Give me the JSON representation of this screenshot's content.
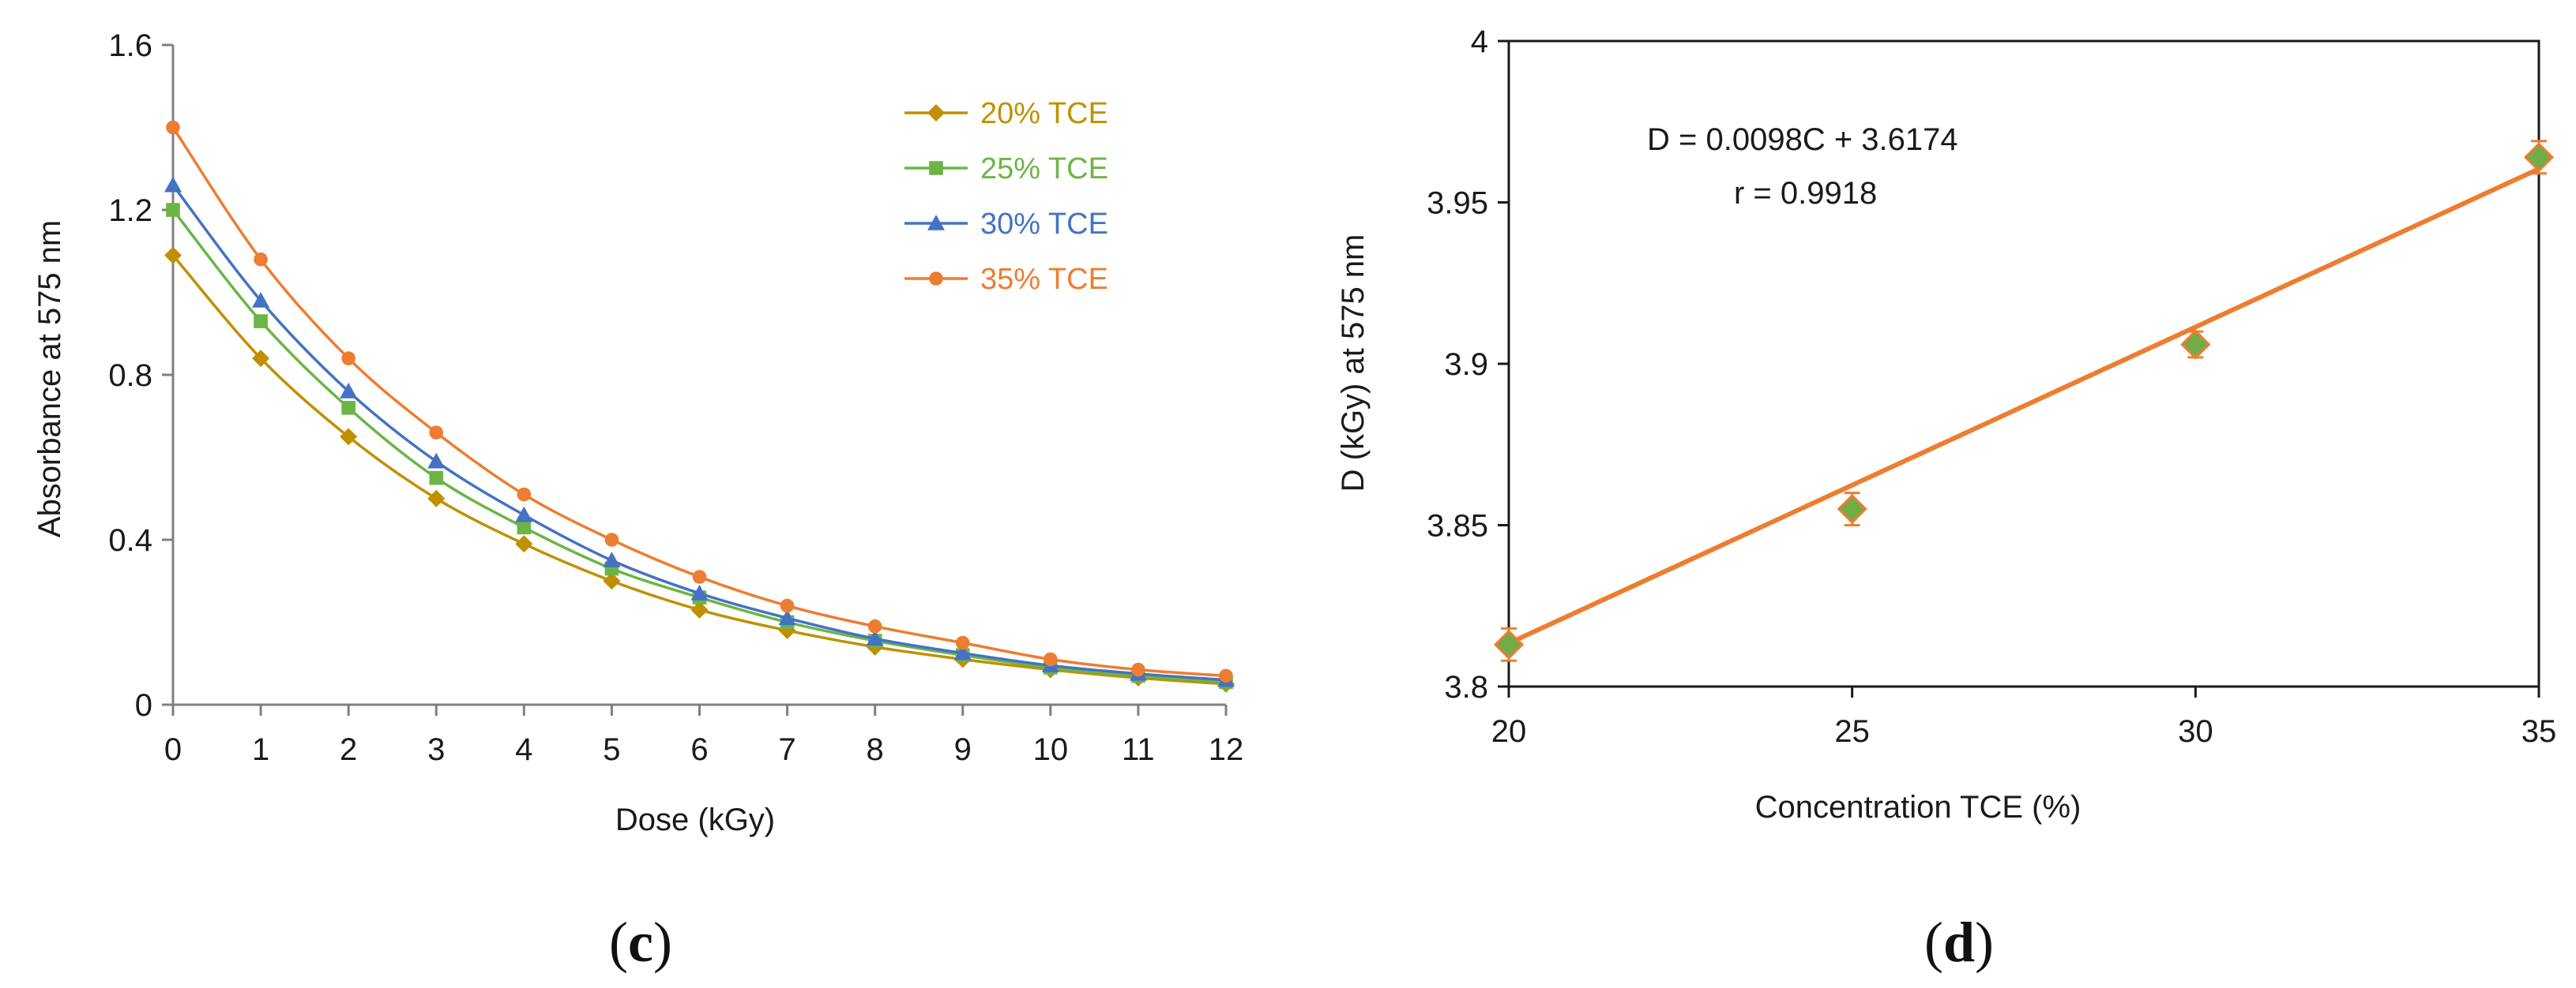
{
  "panels": {
    "c": {
      "label_open": "(",
      "label_letter": "c",
      "label_close": ")"
    },
    "d": {
      "label_open": "(",
      "label_letter": "d",
      "label_close": ")"
    }
  },
  "chart_data": [
    {
      "id": "c",
      "type": "line",
      "xlabel": "Dose (kGy)",
      "ylabel": "Absorbance at 575 nm",
      "xlim": [
        0,
        12
      ],
      "ylim": [
        0,
        1.6
      ],
      "x_ticks": [
        "0",
        "1",
        "2",
        "3",
        "4",
        "5",
        "6",
        "7",
        "8",
        "9",
        "10",
        "11",
        "12"
      ],
      "y_ticks": [
        "0",
        "0.4",
        "0.8",
        "1.2",
        "1.6"
      ],
      "y_tick_values": [
        0,
        0.4,
        0.8,
        1.2,
        1.6
      ],
      "grid": false,
      "legend_position": "top-right",
      "x": [
        0,
        1,
        2,
        3,
        4,
        5,
        6,
        7,
        8,
        9,
        10,
        11,
        12
      ],
      "series": [
        {
          "name": "20% TCE",
          "color": "#C09000",
          "marker": "diamond",
          "values": [
            1.09,
            0.84,
            0.65,
            0.5,
            0.39,
            0.3,
            0.23,
            0.18,
            0.14,
            0.11,
            0.085,
            0.065,
            0.05
          ]
        },
        {
          "name": "25% TCE",
          "color": "#6BB544",
          "marker": "square",
          "values": [
            1.2,
            0.93,
            0.72,
            0.55,
            0.43,
            0.33,
            0.26,
            0.2,
            0.155,
            0.12,
            0.09,
            0.07,
            0.055
          ]
        },
        {
          "name": "30% TCE",
          "color": "#4472C4",
          "marker": "triangle",
          "values": [
            1.26,
            0.98,
            0.76,
            0.59,
            0.46,
            0.35,
            0.27,
            0.21,
            0.16,
            0.125,
            0.095,
            0.075,
            0.06
          ]
        },
        {
          "name": "35% TCE",
          "color": "#ED7D31",
          "marker": "circle",
          "values": [
            1.4,
            1.08,
            0.84,
            0.66,
            0.51,
            0.4,
            0.31,
            0.24,
            0.19,
            0.15,
            0.11,
            0.085,
            0.07
          ]
        }
      ]
    },
    {
      "id": "d",
      "type": "scatter",
      "xlabel": "Concentration TCE (%)",
      "ylabel": "D (kGy) at 575 nm",
      "xlim": [
        20,
        35
      ],
      "ylim": [
        3.8,
        4.0
      ],
      "x_ticks": [
        "20",
        "25",
        "30",
        "35"
      ],
      "x_tick_values": [
        20,
        25,
        30,
        35
      ],
      "y_ticks": [
        "3.8",
        "3.85",
        "3.9",
        "3.95",
        "4"
      ],
      "y_tick_values": [
        3.8,
        3.85,
        3.9,
        3.95,
        4.0
      ],
      "grid": false,
      "points": {
        "color": "#70AD47",
        "edge_color": "#ED7D31",
        "marker": "diamond",
        "x": [
          20,
          25,
          30,
          35
        ],
        "y": [
          3.813,
          3.855,
          3.906,
          3.964
        ],
        "error": [
          0.005,
          0.005,
          0.004,
          0.005
        ]
      },
      "fit": {
        "color": "#ED7D31",
        "slope": 0.0098,
        "intercept": 3.6174
      },
      "annotations": {
        "equation": "D = 0.0098C + 3.6174",
        "r": "r = 0.9918"
      }
    }
  ]
}
